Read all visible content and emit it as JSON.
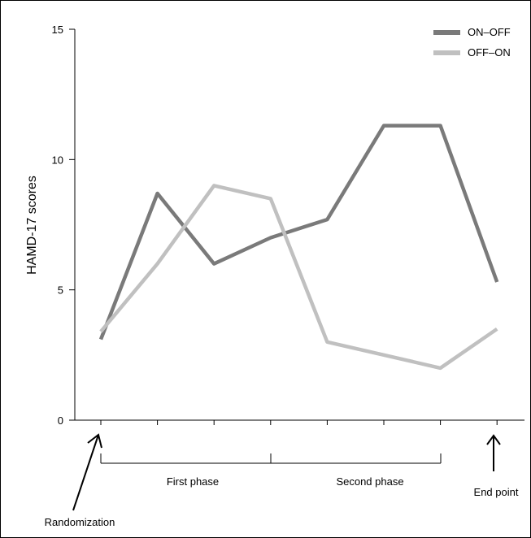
{
  "chart_data": {
    "type": "line",
    "title": "",
    "xlabel": "",
    "ylabel": "HAMD-17 scores",
    "ylim": [
      0,
      15
    ],
    "yticks": [
      0,
      5,
      10,
      15
    ],
    "x": [
      1,
      2,
      3,
      4,
      5,
      6,
      7,
      8
    ],
    "series": [
      {
        "name": "ON–OFF",
        "color": "#7a7a7a",
        "values": [
          3.1,
          8.7,
          6.0,
          7.0,
          7.7,
          11.3,
          11.3,
          5.3
        ]
      },
      {
        "name": "OFF–ON",
        "color": "#c0c0c0",
        "values": [
          3.4,
          6.0,
          9.0,
          8.5,
          3.0,
          2.5,
          2.0,
          3.5
        ]
      }
    ],
    "legend_position": "top-right",
    "grid": false,
    "annotations": {
      "randomization": "Randomization",
      "first_phase": "First phase",
      "second_phase": "Second phase",
      "end_point": "End point"
    }
  }
}
